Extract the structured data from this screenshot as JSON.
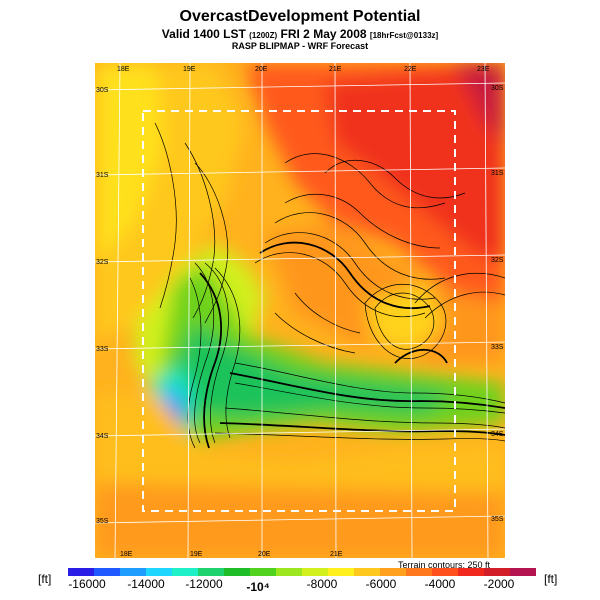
{
  "title": "OvercastDevelopment Potential",
  "subtitle_main": "Valid 1400 LST ",
  "subtitle_small1": "(1200Z)",
  "subtitle_rest": " FRI 2 May 2008 ",
  "subtitle_small2": "[18hrFcst@0133z]",
  "subtitle2": "RASP BLIPMAP - WRF Forecast",
  "lon_top": [
    "18E",
    "19E",
    "20E",
    "21E",
    "22E",
    "23E"
  ],
  "lon_bottom": [
    "18E",
    "19E",
    "20E",
    "21E"
  ],
  "lat_left": [
    "30S",
    "31S",
    "32S",
    "33S",
    "34S",
    "35S"
  ],
  "lat_right": [
    "30S",
    "31S",
    "32S",
    "33S",
    "34S",
    "35S"
  ],
  "colorbar": {
    "unit_left": "[ft]",
    "unit_right": "[ft]",
    "ticks": [
      "-16000",
      "-14000",
      "-12000",
      "-10⁴",
      "-8000",
      "-6000",
      "-4000",
      "-2000"
    ],
    "colors": [
      "#2a1ee6",
      "#1f59ff",
      "#1f9dff",
      "#1fd6ff",
      "#1ff0c8",
      "#1fd26e",
      "#1fbe28",
      "#50d21e",
      "#9be61e",
      "#d2f01e",
      "#fff01e",
      "#ffc81e",
      "#ffa01e",
      "#ff781e",
      "#ff501e",
      "#f0281e",
      "#d21e28",
      "#b41450"
    ]
  },
  "terrain_note": "Terrain contours: 250 ft"
}
